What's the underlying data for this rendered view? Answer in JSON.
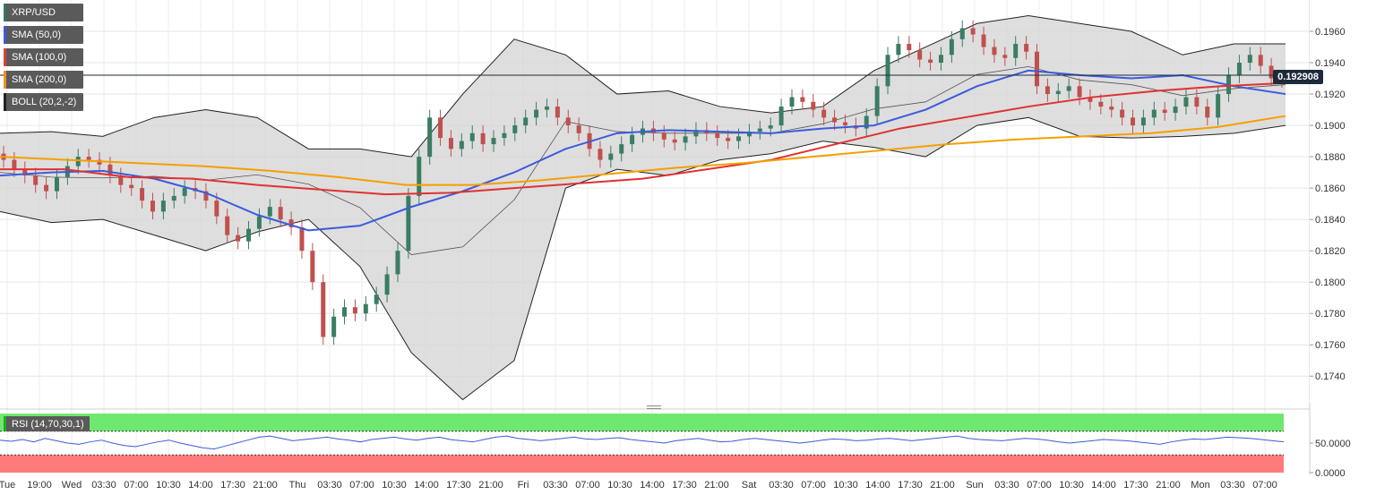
{
  "symbol": "XRP/USD",
  "indicators": [
    {
      "label": "XRP/USD",
      "color": "#2e7d5b"
    },
    {
      "label": "SMA (50,0)",
      "color": "#3b5bdb"
    },
    {
      "label": "SMA (100,0)",
      "color": "#d9413c"
    },
    {
      "label": "SMA (200,0)",
      "color": "#f0901e"
    },
    {
      "label": "BOLL (20,2,-2)",
      "color": "#222222"
    }
  ],
  "current_price": "0.192908",
  "rsi_label": "RSI (14,70,30,1)",
  "rsi_ticks": [
    "50.0000",
    "0.0000"
  ],
  "colors": {
    "up": "#3a7d63",
    "down": "#c0504d",
    "sma50": "#3b5bdb",
    "sma100": "#e03131",
    "sma200": "#f59f00",
    "boll_fill": "#d6d6d6",
    "rsi_line": "#3b5bdb",
    "rsi_over": "#6fe86f",
    "rsi_under": "#ff7b7b"
  },
  "chart_data": {
    "type": "line",
    "title": "XRP/USD",
    "y_ticks": [
      "0.1960",
      "0.1940",
      "0.1920",
      "0.1900",
      "0.1880",
      "0.1860",
      "0.1840",
      "0.1820",
      "0.1800",
      "0.1780",
      "0.1760",
      "0.1740"
    ],
    "ylim": [
      0.1723,
      0.198
    ],
    "x_ticks": [
      "Tue",
      "19:00",
      "Wed",
      "03:30",
      "07:00",
      "10:30",
      "14:00",
      "17:30",
      "21:00",
      "Thu",
      "03:30",
      "07:00",
      "10:30",
      "14:00",
      "17:30",
      "21:00",
      "Fri",
      "03:30",
      "07:00",
      "10:30",
      "14:00",
      "17:30",
      "21:00",
      "Sat",
      "03:30",
      "07:00",
      "10:30",
      "14:00",
      "17:30",
      "21:00",
      "Sun",
      "03:30",
      "07:00",
      "10:30",
      "14:00",
      "17:30",
      "21:00",
      "Mon",
      "03:30",
      "07:00"
    ],
    "series": [
      {
        "name": "SMA (50,0)",
        "values": [
          0.1868,
          0.187,
          0.1871,
          0.1866,
          0.1857,
          0.1843,
          0.1833,
          0.1836,
          0.1848,
          0.1858,
          0.187,
          0.1885,
          0.1895,
          0.1897,
          0.1896,
          0.1895,
          0.1898,
          0.19,
          0.191,
          0.1925,
          0.1935,
          0.1932,
          0.193,
          0.1932,
          0.1925,
          0.192
        ]
      },
      {
        "name": "SMA (100,0)",
        "values": [
          0.1872,
          0.1872,
          0.1867,
          0.1866,
          0.1862,
          0.1859,
          0.1856,
          0.1857,
          0.186,
          0.1863,
          0.1866,
          0.1872,
          0.1878,
          0.1888,
          0.1898,
          0.1905,
          0.1912,
          0.1918,
          0.1922,
          0.1925,
          0.1927
        ]
      },
      {
        "name": "SMA (200,0)",
        "values": [
          0.188,
          0.1878,
          0.1876,
          0.1874,
          0.1871,
          0.1867,
          0.1862,
          0.1862,
          0.1865,
          0.1869,
          0.1873,
          0.1876,
          0.188,
          0.1884,
          0.1888,
          0.1891,
          0.1893,
          0.1895,
          0.1899,
          0.1906
        ]
      },
      {
        "name": "BOLL (20,2,-2) upper",
        "values": [
          0.1895,
          0.1896,
          0.1893,
          0.1905,
          0.191,
          0.1905,
          0.1885,
          0.1885,
          0.188,
          0.192,
          0.1955,
          0.1945,
          0.192,
          0.1922,
          0.1912,
          0.1908,
          0.1912,
          0.1935,
          0.195,
          0.1965,
          0.197,
          0.1965,
          0.196,
          0.1945,
          0.1952,
          0.1952
        ]
      },
      {
        "name": "BOLL (20,2,-2) lower",
        "values": [
          0.1845,
          0.1838,
          0.184,
          0.183,
          0.182,
          0.1832,
          0.184,
          0.181,
          0.1755,
          0.1725,
          0.175,
          0.186,
          0.1872,
          0.1868,
          0.1878,
          0.1882,
          0.189,
          0.1886,
          0.188,
          0.19,
          0.1905,
          0.1893,
          0.1892,
          0.1893,
          0.1895,
          0.19
        ]
      }
    ],
    "candles_close": [
      0.1878,
      0.1872,
      0.1868,
      0.1862,
      0.1858,
      0.1867,
      0.1874,
      0.188,
      0.1878,
      0.1875,
      0.1868,
      0.1862,
      0.186,
      0.1852,
      0.1845,
      0.1852,
      0.1855,
      0.186,
      0.1858,
      0.1852,
      0.1842,
      0.183,
      0.1826,
      0.1834,
      0.1842,
      0.1848,
      0.184,
      0.1835,
      0.182,
      0.18,
      0.1765,
      0.1778,
      0.1784,
      0.178,
      0.1786,
      0.1792,
      0.1805,
      0.182,
      0.1855,
      0.188,
      0.1905,
      0.1892,
      0.1885,
      0.189,
      0.1895,
      0.1888,
      0.1892,
      0.1895,
      0.19,
      0.1905,
      0.191,
      0.1912,
      0.1905,
      0.19,
      0.1895,
      0.1885,
      0.1878,
      0.1882,
      0.1888,
      0.1894,
      0.1898,
      0.1895,
      0.1891,
      0.1889,
      0.1893,
      0.1897,
      0.1895,
      0.1892,
      0.189,
      0.1893,
      0.1896,
      0.1898,
      0.19,
      0.1912,
      0.1918,
      0.1915,
      0.191,
      0.1905,
      0.1902,
      0.19,
      0.1898,
      0.1906,
      0.1925,
      0.1945,
      0.1952,
      0.1948,
      0.1942,
      0.194,
      0.1945,
      0.1955,
      0.1962,
      0.1958,
      0.195,
      0.1945,
      0.1943,
      0.1952,
      0.1947,
      0.1925,
      0.192,
      0.1922,
      0.1925,
      0.1918,
      0.1915,
      0.1912,
      0.191,
      0.1905,
      0.19,
      0.1905,
      0.191,
      0.1908,
      0.1912,
      0.1918,
      0.1912,
      0.1905,
      0.192,
      0.1932,
      0.194,
      0.1945,
      0.1938,
      0.193,
      0.1929
    ],
    "rsi_values": [
      55,
      53,
      56,
      52,
      58,
      54,
      50,
      48,
      52,
      55,
      50,
      46,
      44,
      48,
      52,
      55,
      50,
      46,
      42,
      40,
      45,
      50,
      55,
      60,
      62,
      58,
      54,
      56,
      58,
      60,
      57,
      55,
      52,
      56,
      58,
      60,
      57,
      55,
      58,
      60,
      56,
      54,
      52,
      56,
      60,
      62,
      58,
      56,
      54,
      56,
      58,
      60,
      57,
      56,
      58,
      59,
      56,
      54,
      52,
      50,
      54,
      56,
      58,
      55,
      52,
      53,
      56,
      58,
      56,
      54,
      52,
      50,
      52,
      55,
      57,
      56,
      54,
      55,
      57,
      58,
      56,
      54,
      56,
      58,
      60,
      62,
      58,
      56,
      55,
      54,
      56,
      58,
      57,
      55,
      52,
      50,
      52,
      54,
      56,
      55,
      54,
      52,
      50,
      48,
      52,
      55,
      57,
      56,
      58,
      60,
      59,
      58,
      56,
      54,
      52
    ]
  }
}
